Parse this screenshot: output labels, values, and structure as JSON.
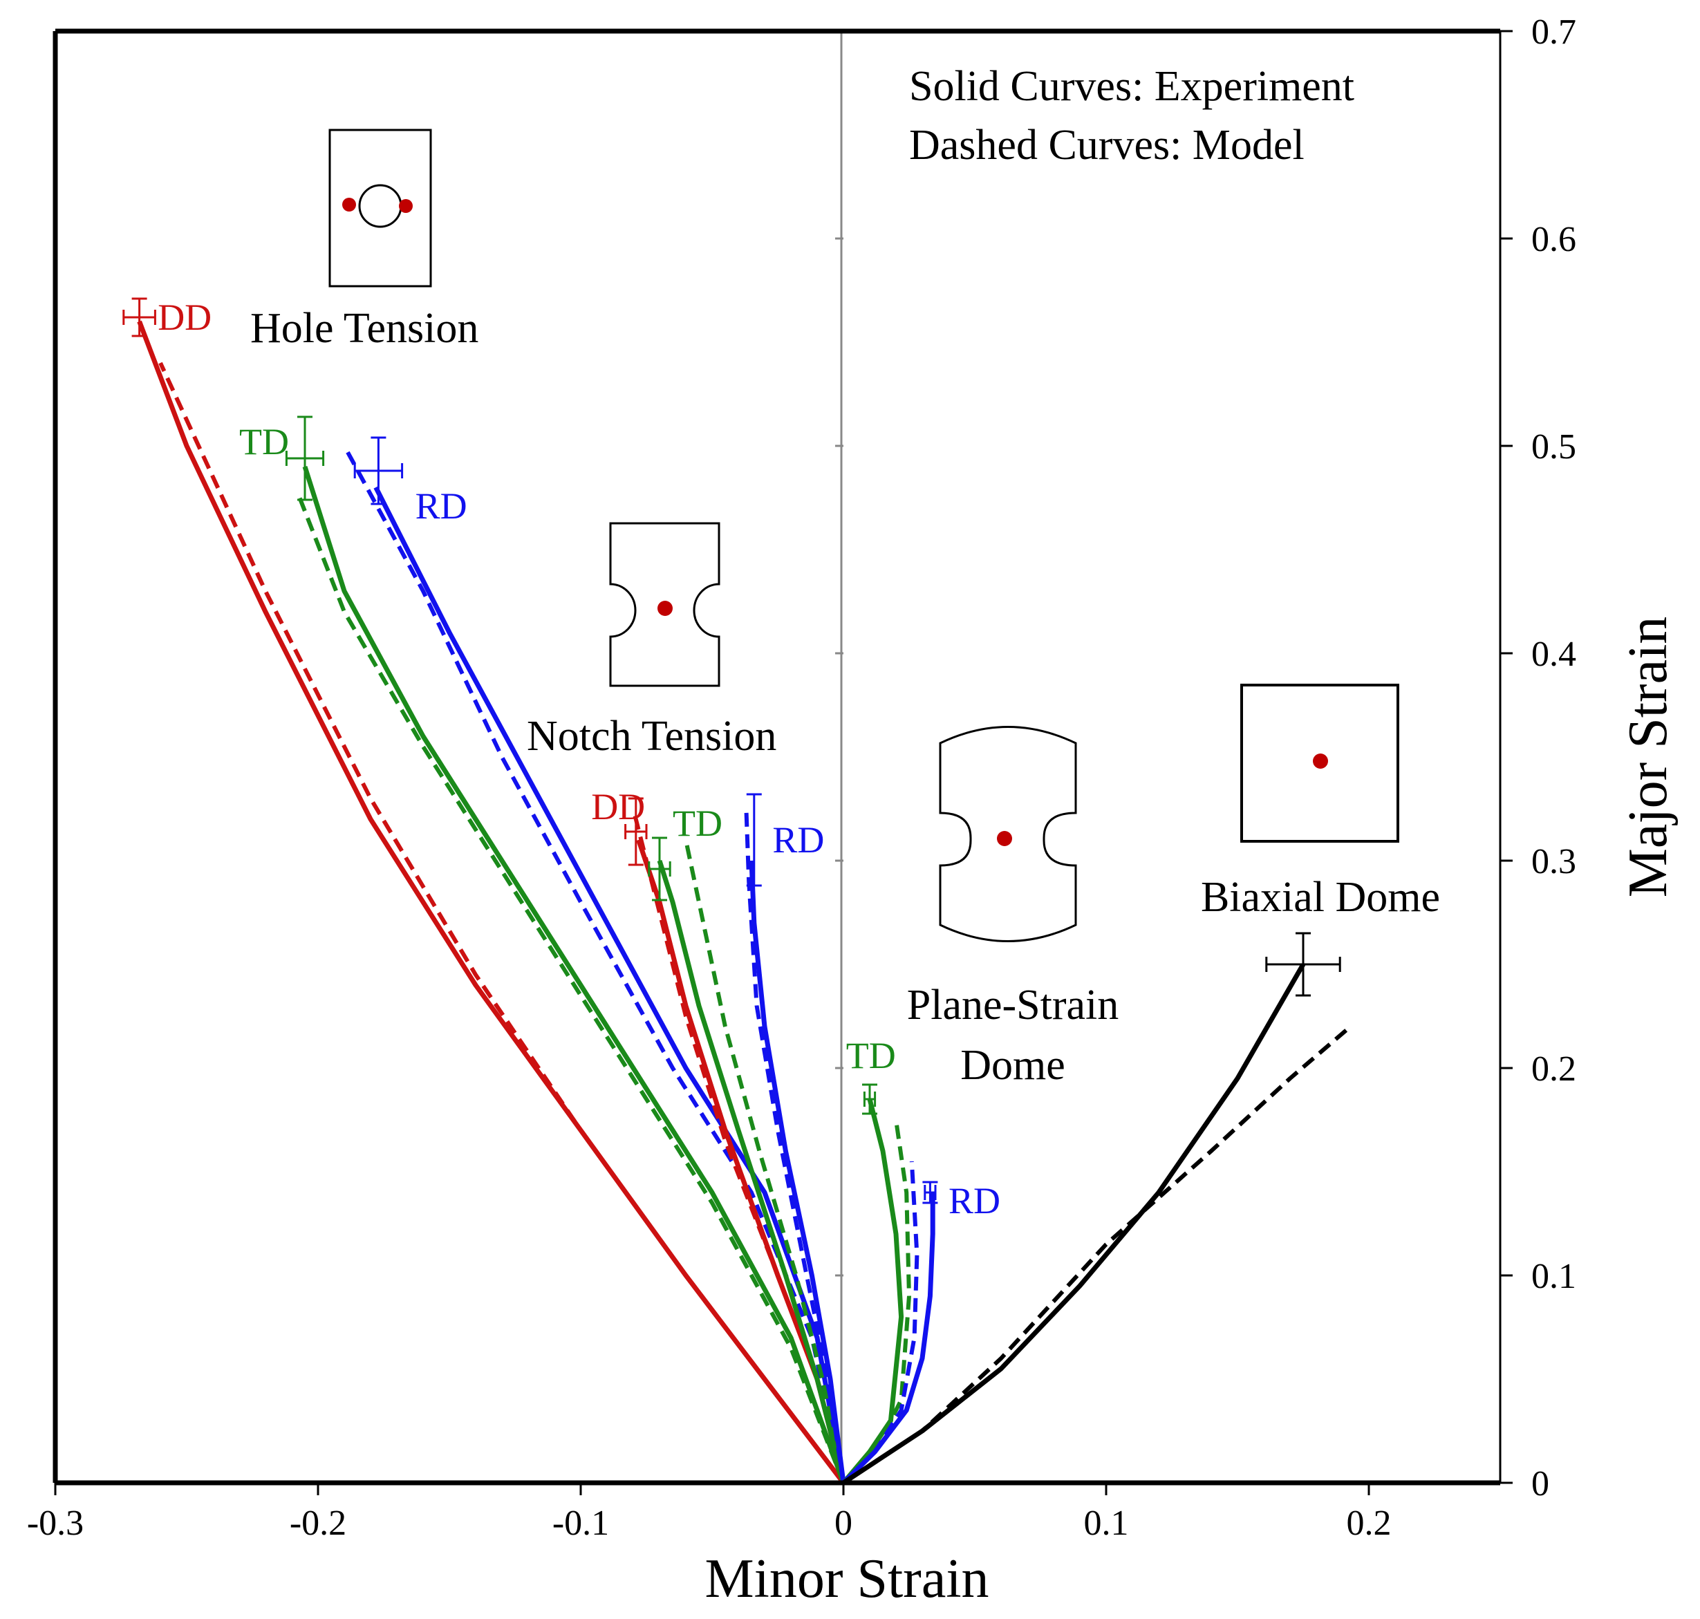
{
  "chart_data": {
    "type": "line",
    "xlabel": "Minor Strain",
    "ylabel": "Major Strain",
    "xlim": [
      -0.3,
      0.25
    ],
    "ylim": [
      0,
      0.7
    ],
    "x_ticks": [
      -0.3,
      -0.2,
      -0.1,
      0,
      0.1,
      0.2
    ],
    "x_tick_labels": [
      "-0.3",
      "-0.2",
      "-0.1",
      "0",
      "0.1",
      "0.2"
    ],
    "y_ticks": [
      0,
      0.1,
      0.2,
      0.3,
      0.4,
      0.5,
      0.6,
      0.7
    ],
    "y_tick_labels": [
      "0",
      "0.1",
      "0.2",
      "0.3",
      "0.4",
      "0.5",
      "0.6",
      "0.7"
    ],
    "colors": {
      "DD": "#cc1111",
      "TD": "#1a8a1a",
      "RD": "#1111ee",
      "biaxial": "#000000",
      "dot": "#c00000"
    },
    "legend_note": [
      "Solid Curves: Experiment",
      "Dashed Curves: Model"
    ],
    "test_labels": {
      "hole": "Hole Tension",
      "notch": "Notch Tension",
      "plane_strain_1": "Plane-Strain",
      "plane_strain_2": "Dome",
      "biaxial": "Biaxial Dome"
    },
    "series": [
      {
        "name": "Hole Tension DD Experiment",
        "group": "DD",
        "style": "solid",
        "x": [
          0,
          -0.03,
          -0.06,
          -0.1,
          -0.14,
          -0.18,
          -0.22,
          -0.25,
          -0.268
        ],
        "y": [
          0,
          0.05,
          0.1,
          0.17,
          0.24,
          0.32,
          0.42,
          0.5,
          0.56
        ]
      },
      {
        "name": "Hole Tension DD Model",
        "group": "DD",
        "style": "dashed",
        "x": [
          0,
          -0.03,
          -0.06,
          -0.1,
          -0.14,
          -0.18,
          -0.22,
          -0.26
        ],
        "y": [
          0,
          0.05,
          0.1,
          0.17,
          0.245,
          0.33,
          0.43,
          0.54
        ]
      },
      {
        "name": "Hole Tension TD Experiment",
        "group": "TD",
        "style": "solid",
        "x": [
          0,
          -0.02,
          -0.05,
          -0.08,
          -0.12,
          -0.16,
          -0.19,
          -0.205
        ],
        "y": [
          0,
          0.07,
          0.14,
          0.2,
          0.28,
          0.36,
          0.43,
          0.49
        ]
      },
      {
        "name": "Hole Tension TD Model",
        "group": "TD",
        "style": "dashed",
        "x": [
          0,
          -0.02,
          -0.05,
          -0.08,
          -0.12,
          -0.16,
          -0.19,
          -0.207
        ],
        "y": [
          0,
          0.065,
          0.135,
          0.195,
          0.275,
          0.355,
          0.42,
          0.475
        ]
      },
      {
        "name": "Hole Tension RD Experiment",
        "group": "RD",
        "style": "solid",
        "x": [
          0,
          -0.01,
          -0.03,
          -0.06,
          -0.09,
          -0.12,
          -0.15,
          -0.178
        ],
        "y": [
          0,
          0.07,
          0.14,
          0.2,
          0.27,
          0.34,
          0.41,
          0.48
        ]
      },
      {
        "name": "Hole Tension RD Model",
        "group": "RD",
        "style": "dashed",
        "x": [
          0,
          -0.012,
          -0.035,
          -0.065,
          -0.1,
          -0.13,
          -0.16,
          -0.19
        ],
        "y": [
          0,
          0.07,
          0.14,
          0.2,
          0.28,
          0.35,
          0.43,
          0.5
        ]
      },
      {
        "name": "Notch Tension DD Experiment",
        "group": "DD",
        "style": "solid",
        "x": [
          0,
          -0.01,
          -0.025,
          -0.045,
          -0.06,
          -0.07,
          -0.078
        ],
        "y": [
          0,
          0.05,
          0.1,
          0.17,
          0.23,
          0.28,
          0.31
        ]
      },
      {
        "name": "Notch Tension DD Model",
        "group": "DD",
        "style": "dashed",
        "x": [
          0,
          -0.01,
          -0.025,
          -0.045,
          -0.06,
          -0.072,
          -0.08
        ],
        "y": [
          0,
          0.05,
          0.1,
          0.165,
          0.225,
          0.285,
          0.325
        ]
      },
      {
        "name": "Notch Tension TD Experiment",
        "group": "TD",
        "style": "solid",
        "x": [
          0,
          -0.01,
          -0.022,
          -0.04,
          -0.055,
          -0.065,
          -0.07
        ],
        "y": [
          0,
          0.05,
          0.1,
          0.17,
          0.23,
          0.28,
          0.3
        ]
      },
      {
        "name": "Notch Tension TD Model",
        "group": "TD",
        "style": "dashed",
        "x": [
          0,
          -0.008,
          -0.018,
          -0.032,
          -0.045,
          -0.055,
          -0.06
        ],
        "y": [
          0,
          0.05,
          0.1,
          0.16,
          0.22,
          0.28,
          0.31
        ]
      },
      {
        "name": "Notch Tension RD Experiment",
        "group": "RD",
        "style": "solid",
        "x": [
          0,
          -0.005,
          -0.012,
          -0.022,
          -0.03,
          -0.034,
          -0.035
        ],
        "y": [
          0,
          0.05,
          0.1,
          0.16,
          0.22,
          0.27,
          0.3
        ]
      },
      {
        "name": "Notch Tension RD Model",
        "group": "RD",
        "style": "dashed",
        "x": [
          0,
          -0.006,
          -0.014,
          -0.025,
          -0.033,
          -0.036,
          -0.037
        ],
        "y": [
          0,
          0.05,
          0.1,
          0.17,
          0.23,
          0.29,
          0.325
        ]
      },
      {
        "name": "Plane-Strain Dome TD Experiment",
        "group": "TD",
        "style": "solid",
        "x": [
          0,
          0.01,
          0.018,
          0.022,
          0.02,
          0.015,
          0.01
        ],
        "y": [
          0,
          0.015,
          0.03,
          0.08,
          0.12,
          0.16,
          0.185
        ]
      },
      {
        "name": "Plane-Strain Dome TD Model",
        "group": "TD",
        "style": "dashed",
        "x": [
          0,
          0.012,
          0.022,
          0.025,
          0.024,
          0.02
        ],
        "y": [
          0,
          0.015,
          0.04,
          0.09,
          0.14,
          0.175
        ]
      },
      {
        "name": "Plane-Strain Dome RD Experiment",
        "group": "RD",
        "style": "solid",
        "x": [
          0,
          0.012,
          0.024,
          0.03,
          0.033,
          0.034,
          0.034
        ],
        "y": [
          0,
          0.015,
          0.035,
          0.06,
          0.09,
          0.12,
          0.14
        ]
      },
      {
        "name": "Plane-Strain Dome RD Model",
        "group": "RD",
        "style": "dashed",
        "x": [
          0,
          0.012,
          0.022,
          0.027,
          0.028,
          0.026
        ],
        "y": [
          0,
          0.015,
          0.035,
          0.07,
          0.11,
          0.155
        ]
      },
      {
        "name": "Biaxial Dome Experiment",
        "group": "biaxial",
        "style": "solid",
        "x": [
          0,
          0.03,
          0.06,
          0.09,
          0.12,
          0.15,
          0.175
        ],
        "y": [
          0,
          0.025,
          0.055,
          0.095,
          0.14,
          0.195,
          0.25
        ]
      },
      {
        "name": "Biaxial Dome Model",
        "group": "biaxial",
        "style": "dashed",
        "x": [
          0,
          0.03,
          0.06,
          0.1,
          0.14,
          0.17,
          0.193
        ],
        "y": [
          0,
          0.025,
          0.06,
          0.115,
          0.16,
          0.195,
          0.22
        ]
      }
    ],
    "error_bars": [
      {
        "name": "Hole DD",
        "group": "DD",
        "x": -0.268,
        "y": 0.562,
        "xerr": 0.006,
        "yerr": 0.009
      },
      {
        "name": "Hole TD",
        "group": "TD",
        "x": -0.205,
        "y": 0.494,
        "xerr": 0.007,
        "yerr": 0.02
      },
      {
        "name": "Hole RD",
        "group": "RD",
        "x": -0.177,
        "y": 0.488,
        "xerr": 0.009,
        "yerr": 0.016
      },
      {
        "name": "Notch DD",
        "group": "DD",
        "x": -0.079,
        "y": 0.314,
        "xerr": 0.004,
        "yerr": 0.016
      },
      {
        "name": "Notch TD",
        "group": "TD",
        "x": -0.07,
        "y": 0.296,
        "xerr": 0.004,
        "yerr": 0.015
      },
      {
        "name": "Notch RD",
        "group": "RD",
        "x": -0.034,
        "y": 0.31,
        "xerr": 0.0,
        "yerr": 0.022
      },
      {
        "name": "Plane-Strain TD",
        "group": "TD",
        "x": 0.01,
        "y": 0.185,
        "xerr": 0.002,
        "yerr": 0.007
      },
      {
        "name": "Plane-Strain RD",
        "group": "RD",
        "x": 0.033,
        "y": 0.14,
        "xerr": 0.002,
        "yerr": 0.005
      },
      {
        "name": "Biaxial",
        "group": "biaxial",
        "x": 0.175,
        "y": 0.25,
        "xerr": 0.014,
        "yerr": 0.015
      }
    ],
    "direction_labels": [
      {
        "text": "DD",
        "group": "DD",
        "x": -0.261,
        "y": 0.562
      },
      {
        "text": "TD",
        "group": "TD",
        "x": -0.23,
        "y": 0.502
      },
      {
        "text": "RD",
        "group": "RD",
        "x": -0.163,
        "y": 0.471
      },
      {
        "text": "DD",
        "group": "DD",
        "x": -0.096,
        "y": 0.326
      },
      {
        "text": "TD",
        "group": "TD",
        "x": -0.065,
        "y": 0.318
      },
      {
        "text": "RD",
        "group": "RD",
        "x": -0.027,
        "y": 0.31
      },
      {
        "text": "TD",
        "group": "TD",
        "x": 0.001,
        "y": 0.206
      },
      {
        "text": "RD",
        "group": "RD",
        "x": 0.04,
        "y": 0.136
      }
    ]
  }
}
